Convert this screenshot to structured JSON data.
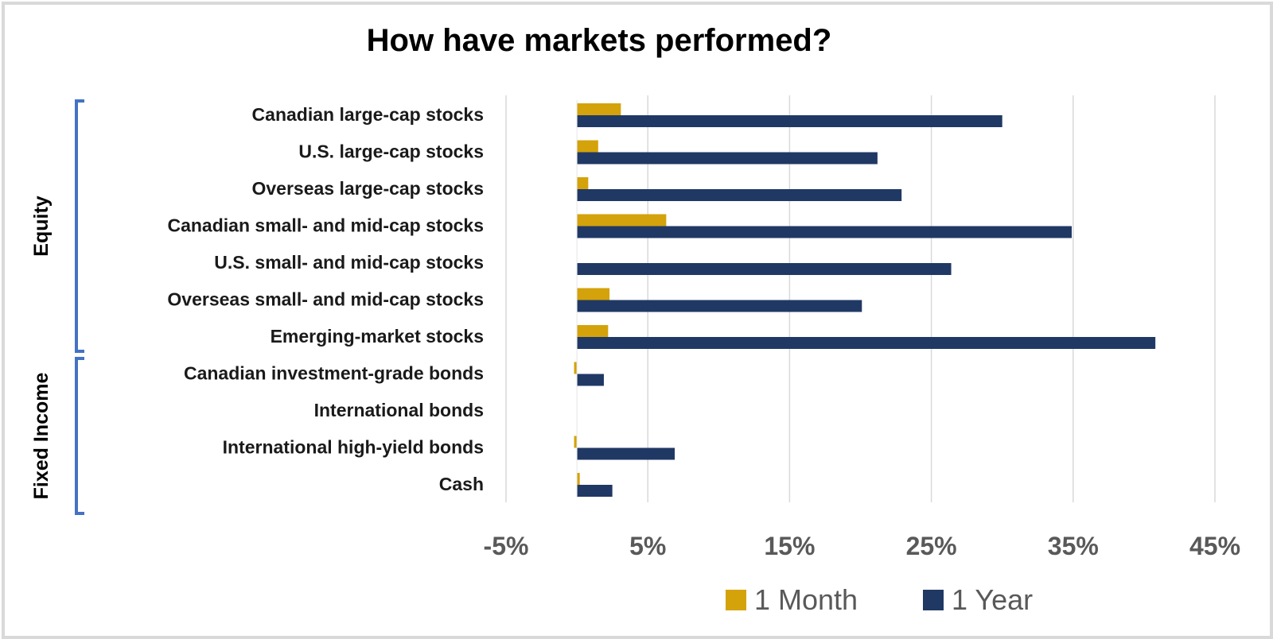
{
  "chart_data": {
    "type": "bar",
    "orientation": "horizontal",
    "title": "How have markets performed?",
    "xlabel": "",
    "ylabel": "",
    "xlim": [
      -5,
      45
    ],
    "x_ticks": [
      "-5%",
      "5%",
      "15%",
      "25%",
      "35%",
      "45%"
    ],
    "x_tick_values": [
      -5,
      5,
      15,
      25,
      35,
      45
    ],
    "grid": true,
    "legend_position": "bottom",
    "categories": [
      "Canadian large-cap stocks",
      "U.S. large-cap stocks",
      "Overseas large-cap stocks",
      "Canadian small- and mid-cap stocks",
      "U.S. small- and mid-cap stocks",
      "Overseas small- and mid-cap stocks",
      "Emerging-market stocks",
      "Canadian investment-grade bonds",
      "International bonds",
      "International high-yield bonds",
      "Cash"
    ],
    "groups": [
      {
        "label": "Equity",
        "first": 0,
        "last": 6
      },
      {
        "label": "Fixed Income",
        "first": 7,
        "last": 10
      }
    ],
    "series": [
      {
        "name": "1 Month",
        "color": "#d4a20a",
        "values": [
          3.1,
          1.5,
          0.8,
          6.3,
          0.0,
          2.3,
          2.2,
          -0.2,
          0.0,
          -0.2,
          0.2
        ]
      },
      {
        "name": "1 Year",
        "color": "#203864",
        "values": [
          30.0,
          21.2,
          22.9,
          34.9,
          26.4,
          20.1,
          40.8,
          1.9,
          0.0,
          6.9,
          2.5
        ]
      }
    ],
    "colors": {
      "bracket": "#4472c4",
      "grid": "#d9d9d9"
    }
  }
}
